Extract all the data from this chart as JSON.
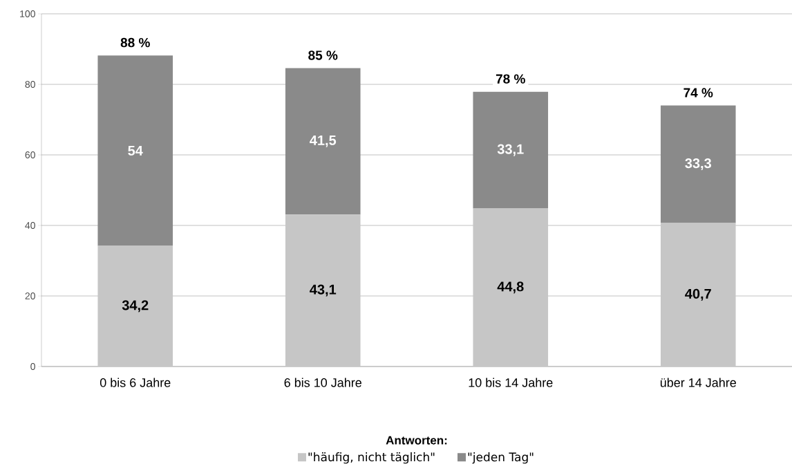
{
  "chart_data": {
    "type": "bar",
    "stacked": true,
    "categories": [
      "0 bis 6 Jahre",
      "6 bis 10 Jahre",
      "10 bis 14 Jahre",
      "über 14 Jahre"
    ],
    "series": [
      {
        "name": "\"häufig, nicht täglich\"",
        "color": "#c6c6c6",
        "values": [
          34.2,
          43.1,
          44.8,
          40.7
        ],
        "value_labels": [
          "34,2",
          "43,1",
          "44,8",
          "40,7"
        ]
      },
      {
        "name": "\"jeden Tag\"",
        "color": "#8a8a8a",
        "values": [
          54,
          41.5,
          33.1,
          33.3
        ],
        "value_labels": [
          "54",
          "41,5",
          "33,1",
          "33,3"
        ]
      }
    ],
    "totals": [
      "88 %",
      "85 %",
      "78 %",
      "74 %"
    ],
    "ylim": [
      0,
      100
    ],
    "yticks": [
      0,
      20,
      40,
      60,
      80,
      100
    ],
    "grid": "y",
    "legend": "bottom",
    "legend_title": "Antworten:"
  }
}
